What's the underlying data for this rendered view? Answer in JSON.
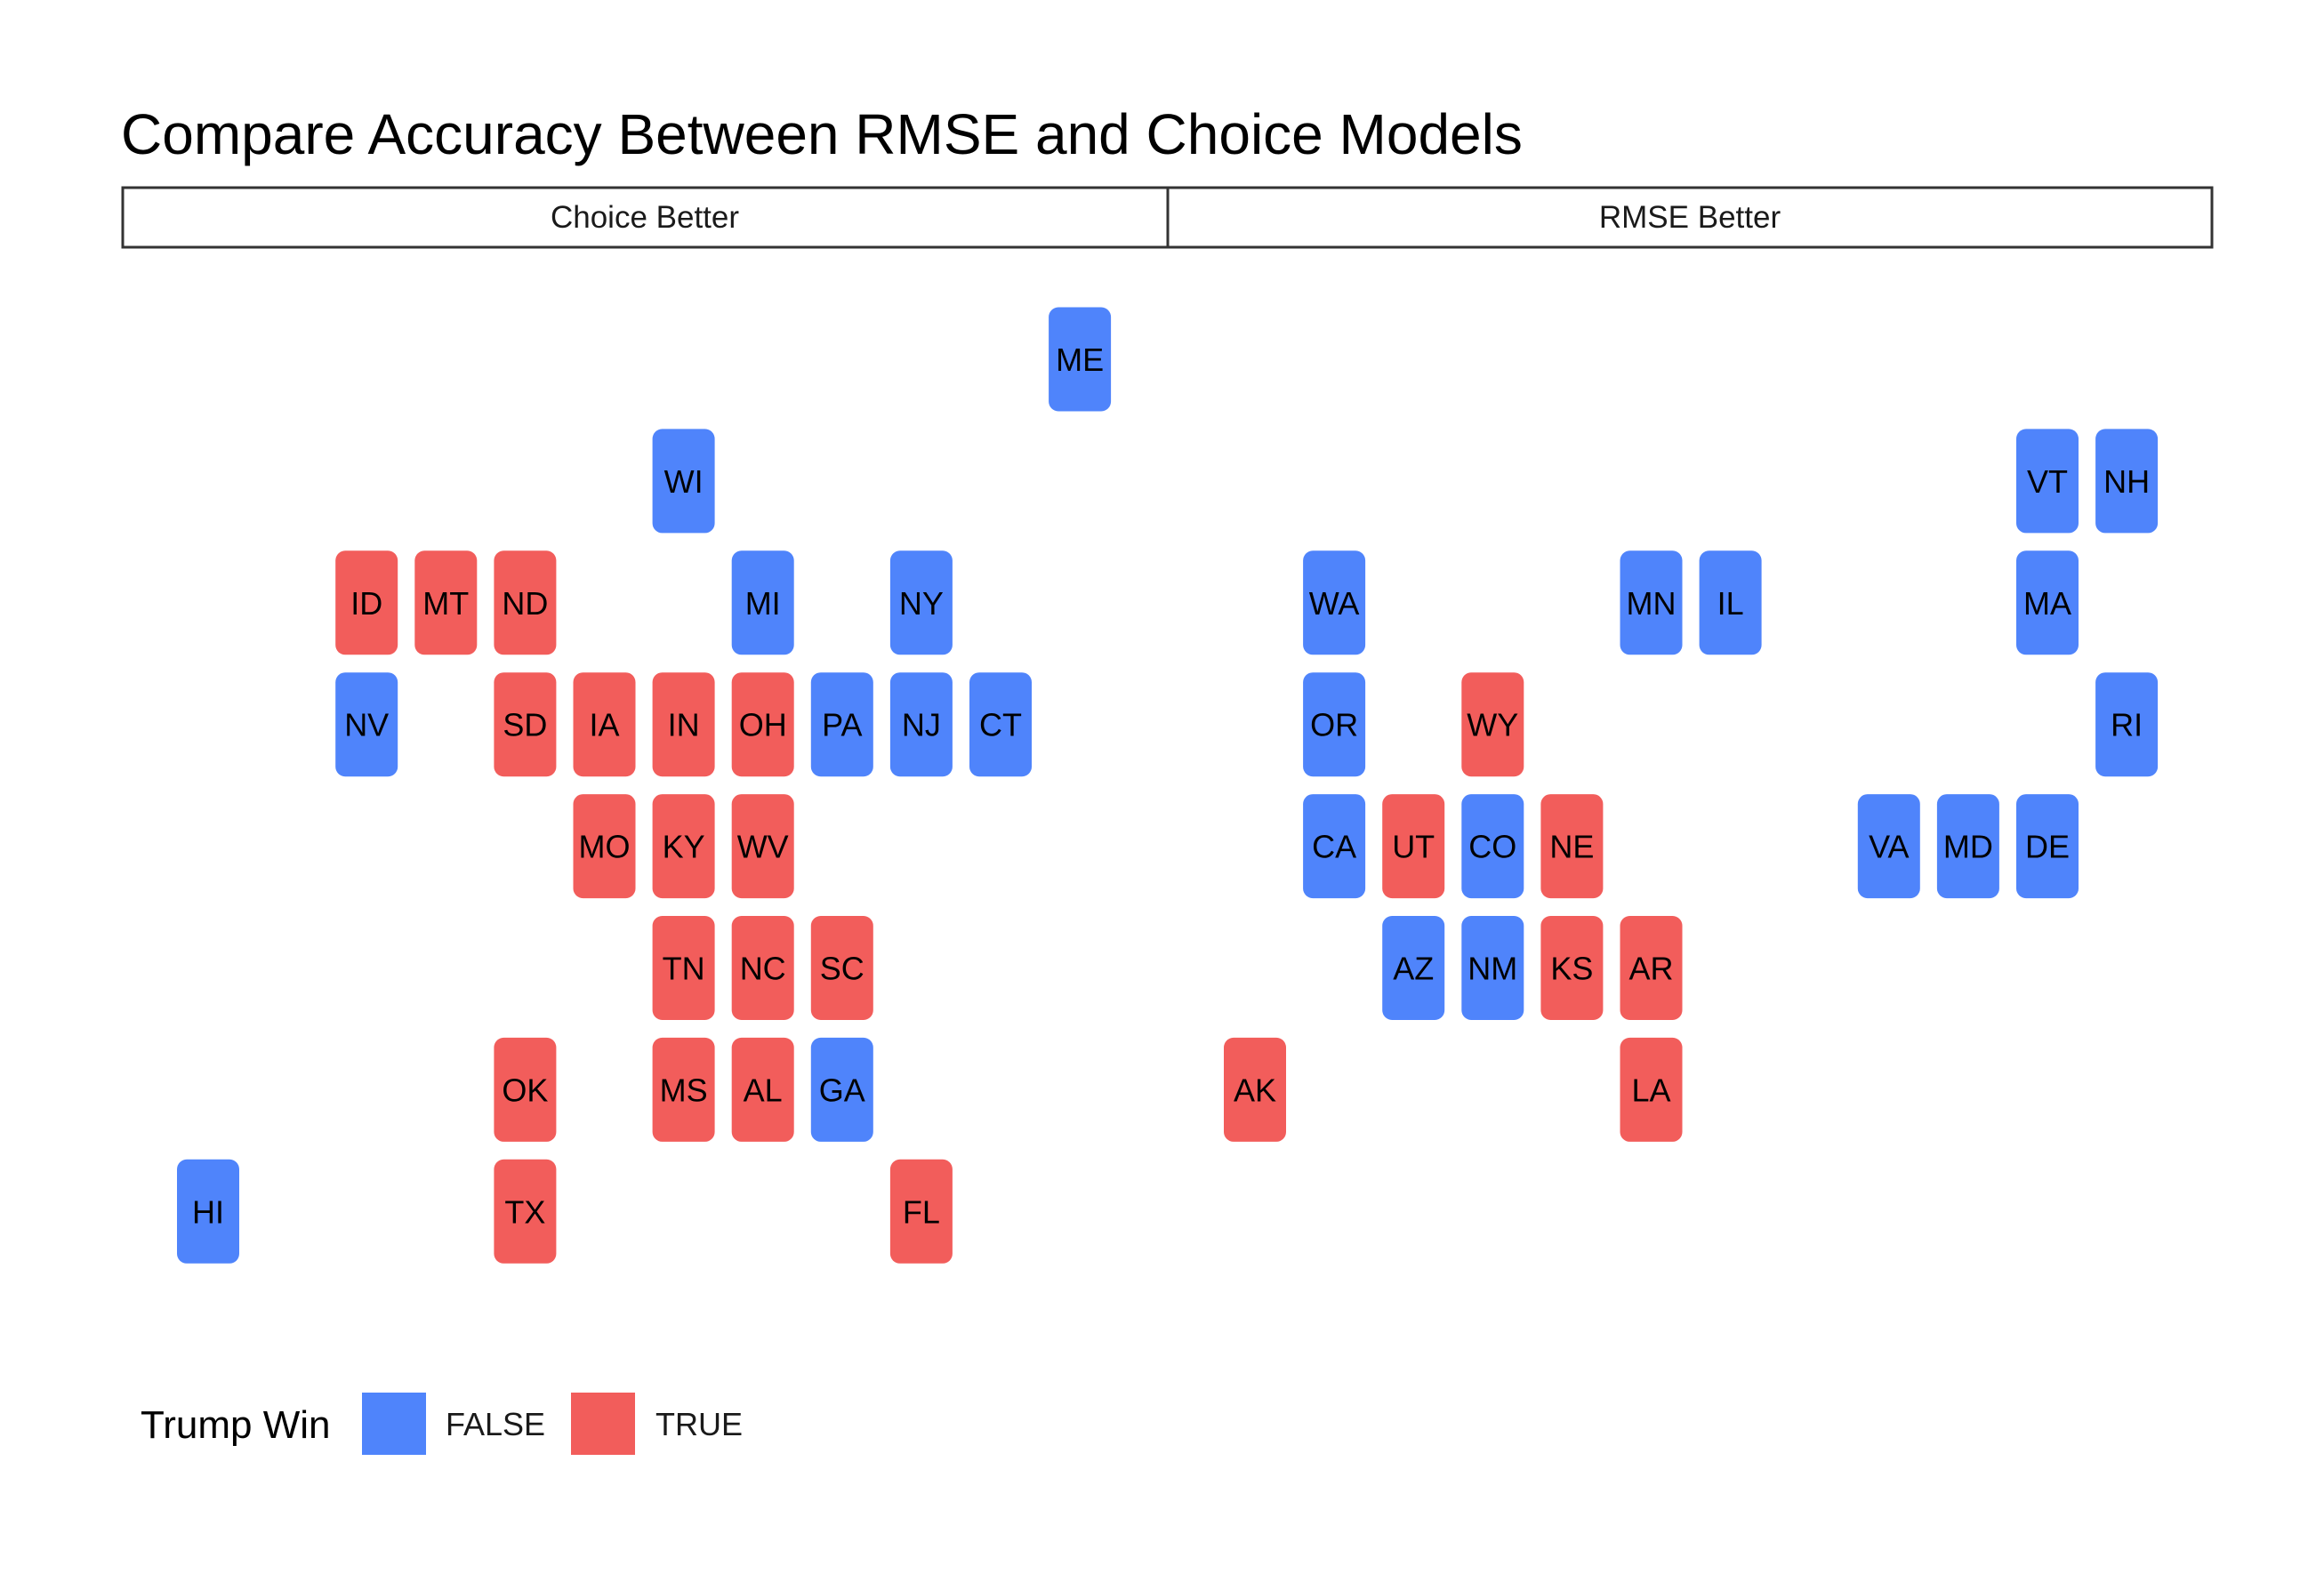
{
  "chart_data": {
    "type": "heatmap",
    "title": "Compare Accuracy Between RMSE and Choice Models",
    "facets": [
      "Choice Better",
      "RMSE Better"
    ],
    "grid": {
      "cols": 12,
      "rows": 8
    },
    "legend": {
      "title": "Trump Win",
      "placement": "bottom-left",
      "entries": [
        {
          "label": "FALSE",
          "color": "#4F84FB"
        },
        {
          "label": "TRUE",
          "color": "#F25D5B"
        }
      ]
    },
    "tiles": [
      {
        "state": "ME",
        "facet": "Choice Better",
        "col": 12,
        "row": 1,
        "trump_win": false
      },
      {
        "state": "WI",
        "facet": "Choice Better",
        "col": 7,
        "row": 2,
        "trump_win": false
      },
      {
        "state": "ID",
        "facet": "Choice Better",
        "col": 3,
        "row": 3,
        "trump_win": true
      },
      {
        "state": "MT",
        "facet": "Choice Better",
        "col": 4,
        "row": 3,
        "trump_win": true
      },
      {
        "state": "ND",
        "facet": "Choice Better",
        "col": 5,
        "row": 3,
        "trump_win": true
      },
      {
        "state": "MI",
        "facet": "Choice Better",
        "col": 8,
        "row": 3,
        "trump_win": false
      },
      {
        "state": "NY",
        "facet": "Choice Better",
        "col": 10,
        "row": 3,
        "trump_win": false
      },
      {
        "state": "NV",
        "facet": "Choice Better",
        "col": 3,
        "row": 4,
        "trump_win": false
      },
      {
        "state": "SD",
        "facet": "Choice Better",
        "col": 5,
        "row": 4,
        "trump_win": true
      },
      {
        "state": "IA",
        "facet": "Choice Better",
        "col": 6,
        "row": 4,
        "trump_win": true
      },
      {
        "state": "IN",
        "facet": "Choice Better",
        "col": 7,
        "row": 4,
        "trump_win": true
      },
      {
        "state": "OH",
        "facet": "Choice Better",
        "col": 8,
        "row": 4,
        "trump_win": true
      },
      {
        "state": "PA",
        "facet": "Choice Better",
        "col": 9,
        "row": 4,
        "trump_win": false
      },
      {
        "state": "NJ",
        "facet": "Choice Better",
        "col": 10,
        "row": 4,
        "trump_win": false
      },
      {
        "state": "CT",
        "facet": "Choice Better",
        "col": 11,
        "row": 4,
        "trump_win": false
      },
      {
        "state": "MO",
        "facet": "Choice Better",
        "col": 6,
        "row": 5,
        "trump_win": true
      },
      {
        "state": "KY",
        "facet": "Choice Better",
        "col": 7,
        "row": 5,
        "trump_win": true
      },
      {
        "state": "WV",
        "facet": "Choice Better",
        "col": 8,
        "row": 5,
        "trump_win": true
      },
      {
        "state": "TN",
        "facet": "Choice Better",
        "col": 7,
        "row": 6,
        "trump_win": true
      },
      {
        "state": "NC",
        "facet": "Choice Better",
        "col": 8,
        "row": 6,
        "trump_win": true
      },
      {
        "state": "SC",
        "facet": "Choice Better",
        "col": 9,
        "row": 6,
        "trump_win": true
      },
      {
        "state": "OK",
        "facet": "Choice Better",
        "col": 5,
        "row": 7,
        "trump_win": true
      },
      {
        "state": "MS",
        "facet": "Choice Better",
        "col": 7,
        "row": 7,
        "trump_win": true
      },
      {
        "state": "AL",
        "facet": "Choice Better",
        "col": 8,
        "row": 7,
        "trump_win": true
      },
      {
        "state": "GA",
        "facet": "Choice Better",
        "col": 9,
        "row": 7,
        "trump_win": false
      },
      {
        "state": "HI",
        "facet": "Choice Better",
        "col": 1,
        "row": 8,
        "trump_win": false
      },
      {
        "state": "TX",
        "facet": "Choice Better",
        "col": 5,
        "row": 8,
        "trump_win": true
      },
      {
        "state": "FL",
        "facet": "Choice Better",
        "col": 10,
        "row": 8,
        "trump_win": true
      },
      {
        "state": "VT",
        "facet": "RMSE Better",
        "col": 11,
        "row": 2,
        "trump_win": false
      },
      {
        "state": "NH",
        "facet": "RMSE Better",
        "col": 12,
        "row": 2,
        "trump_win": false
      },
      {
        "state": "WA",
        "facet": "RMSE Better",
        "col": 2,
        "row": 3,
        "trump_win": false
      },
      {
        "state": "MN",
        "facet": "RMSE Better",
        "col": 6,
        "row": 3,
        "trump_win": false
      },
      {
        "state": "IL",
        "facet": "RMSE Better",
        "col": 7,
        "row": 3,
        "trump_win": false
      },
      {
        "state": "MA",
        "facet": "RMSE Better",
        "col": 11,
        "row": 3,
        "trump_win": false
      },
      {
        "state": "OR",
        "facet": "RMSE Better",
        "col": 2,
        "row": 4,
        "trump_win": false
      },
      {
        "state": "WY",
        "facet": "RMSE Better",
        "col": 4,
        "row": 4,
        "trump_win": true
      },
      {
        "state": "RI",
        "facet": "RMSE Better",
        "col": 12,
        "row": 4,
        "trump_win": false
      },
      {
        "state": "CA",
        "facet": "RMSE Better",
        "col": 2,
        "row": 5,
        "trump_win": false
      },
      {
        "state": "UT",
        "facet": "RMSE Better",
        "col": 3,
        "row": 5,
        "trump_win": true
      },
      {
        "state": "CO",
        "facet": "RMSE Better",
        "col": 4,
        "row": 5,
        "trump_win": false
      },
      {
        "state": "NE",
        "facet": "RMSE Better",
        "col": 5,
        "row": 5,
        "trump_win": true
      },
      {
        "state": "VA",
        "facet": "RMSE Better",
        "col": 9,
        "row": 5,
        "trump_win": false
      },
      {
        "state": "MD",
        "facet": "RMSE Better",
        "col": 10,
        "row": 5,
        "trump_win": false
      },
      {
        "state": "DE",
        "facet": "RMSE Better",
        "col": 11,
        "row": 5,
        "trump_win": false
      },
      {
        "state": "AZ",
        "facet": "RMSE Better",
        "col": 3,
        "row": 6,
        "trump_win": false
      },
      {
        "state": "NM",
        "facet": "RMSE Better",
        "col": 4,
        "row": 6,
        "trump_win": false
      },
      {
        "state": "KS",
        "facet": "RMSE Better",
        "col": 5,
        "row": 6,
        "trump_win": true
      },
      {
        "state": "AR",
        "facet": "RMSE Better",
        "col": 6,
        "row": 6,
        "trump_win": true
      },
      {
        "state": "AK",
        "facet": "RMSE Better",
        "col": 1,
        "row": 7,
        "trump_win": true
      },
      {
        "state": "LA",
        "facet": "RMSE Better",
        "col": 6,
        "row": 7,
        "trump_win": true
      }
    ]
  }
}
